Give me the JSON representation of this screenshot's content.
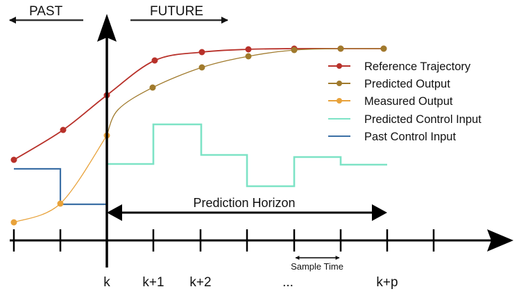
{
  "header": {
    "past_label": "PAST",
    "future_label": "FUTURE"
  },
  "legend": [
    {
      "label": "Reference Trajectory",
      "color": "#b8312a",
      "marker": "dot"
    },
    {
      "label": "Predicted Output",
      "color": "#a07a2c",
      "marker": "dot"
    },
    {
      "label": "Measured Output",
      "color": "#e8a23a",
      "marker": "dot"
    },
    {
      "label": "Predicted Control Input",
      "color": "#7de3c6",
      "marker": "none"
    },
    {
      "label": "Past Control Input",
      "color": "#3b6fa5",
      "marker": "none"
    }
  ],
  "annotations": {
    "prediction_horizon": "Prediction Horizon",
    "sample_time": "Sample Time"
  },
  "time_axis": {
    "labels": [
      "k",
      "k+1",
      "k+2",
      "...",
      "k+p"
    ]
  }
}
